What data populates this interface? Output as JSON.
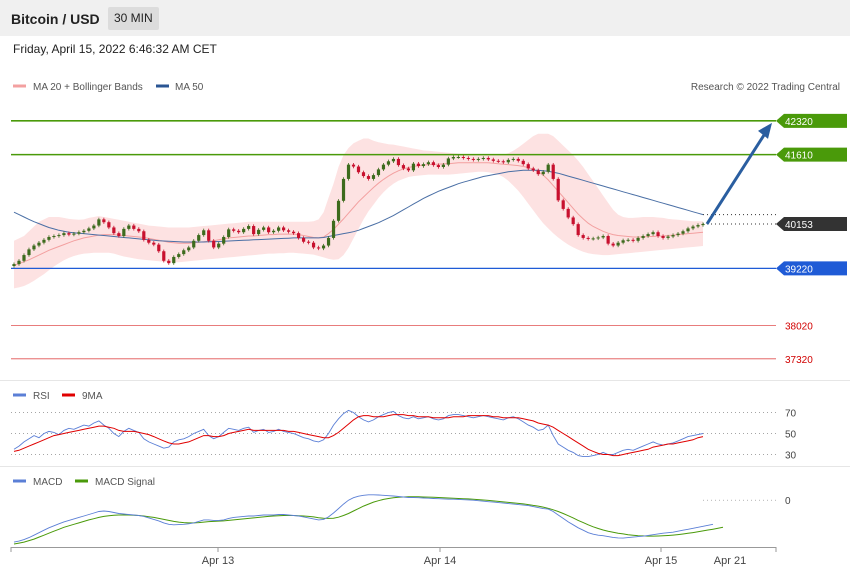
{
  "header": {
    "title": "Bitcoin / USD",
    "timeframe": "30 MIN"
  },
  "datetime": "Friday, April 15, 2022 6:46:32 AM CET",
  "legend": {
    "ma_bb": "MA 20 + Bollinger Bands",
    "ma50": "MA 50",
    "credit": "Research © 2022 Trading Central"
  },
  "rsi_legend": {
    "rsi": "RSI",
    "ma": "9MA"
  },
  "macd_legend": {
    "macd": "MACD",
    "signal": "MACD Signal"
  },
  "colors": {
    "support_blue": "#1f5bd6",
    "resistance_green": "#4a9a0a",
    "pivot_red": "#e05050",
    "bull": "#3d6b1d",
    "bear": "#c8102e",
    "bb_fill": "#fde2e2",
    "ma50": "#4a6fa5",
    "ma20": "#f3a0a0",
    "arrow": "#2a5ea0"
  },
  "chart_data": {
    "type": "candlestick",
    "instrument": "Bitcoin / USD",
    "timeframe": "30 MIN",
    "price_ylim": [
      36980,
      42800
    ],
    "x_ticks": [
      "Apr 13",
      "Apr 14",
      "Apr 15",
      "Apr 21"
    ],
    "current_price": 40153,
    "levels": [
      {
        "value": 42320,
        "type": "resistance"
      },
      {
        "value": 41610,
        "type": "resistance"
      },
      {
        "value": 39220,
        "type": "support"
      },
      {
        "value": 38020,
        "type": "support"
      },
      {
        "value": 37320,
        "type": "support"
      }
    ],
    "projection": {
      "from": 40153,
      "to": 42320
    },
    "close": [
      39310,
      39380,
      39500,
      39620,
      39700,
      39760,
      39820,
      39880,
      39900,
      39920,
      39960,
      39930,
      39950,
      39980,
      40010,
      40060,
      40120,
      40250,
      40190,
      40080,
      39960,
      39900,
      40050,
      40120,
      40050,
      40000,
      39820,
      39760,
      39720,
      39580,
      39380,
      39330,
      39460,
      39520,
      39600,
      39660,
      39800,
      39920,
      40020,
      39800,
      39660,
      39740,
      39880,
      40040,
      40010,
      39980,
      40050,
      40110,
      39940,
      40030,
      40080,
      39980,
      40010,
      40080,
      40020,
      39990,
      39960,
      39860,
      39780,
      39760,
      39660,
      39640,
      39700,
      39860,
      40220,
      40640,
      41100,
      41400,
      41360,
      41240,
      41160,
      41100,
      41180,
      41300,
      41400,
      41470,
      41520,
      41390,
      41320,
      41280,
      41420,
      41370,
      41410,
      41450,
      41390,
      41350,
      41400,
      41530,
      41560,
      41560,
      41540,
      41520,
      41500,
      41520,
      41540,
      41510,
      41480,
      41470,
      41450,
      41500,
      41520,
      41480,
      41410,
      41320,
      41280,
      41200,
      41250,
      41400,
      41100,
      40650,
      40470,
      40290,
      40150,
      39920,
      39860,
      39840,
      39850,
      39870,
      39900,
      39740,
      39700,
      39760,
      39810,
      39820,
      39800,
      39860,
      39900,
      39940,
      39980,
      39900,
      39860,
      39890,
      39920,
      39950,
      40000,
      40060,
      40100,
      40130,
      40153
    ],
    "ma20": [
      39280,
      39320,
      39360,
      39400,
      39450,
      39500,
      39550,
      39600,
      39640,
      39680,
      39720,
      39760,
      39800,
      39830,
      39860,
      39880,
      39900,
      39920,
      39930,
      39930,
      39930,
      39920,
      39910,
      39900,
      39890,
      39880,
      39870,
      39850,
      39830,
      39810,
      39790,
      39770,
      39760,
      39750,
      39750,
      39750,
      39760,
      39770,
      39780,
      39790,
      39800,
      39820,
      39840,
      39860,
      39870,
      39880,
      39890,
      39900,
      39900,
      39910,
      39920,
      39930,
      39930,
      39940,
      39940,
      39940,
      39940,
      39930,
      39910,
      39890,
      39870,
      39860,
      39880,
      39950,
      40040,
      40150,
      40260,
      40380,
      40500,
      40620,
      40720,
      40820,
      40920,
      41010,
      41090,
      41160,
      41220,
      41270,
      41310,
      41340,
      41360,
      41380,
      41390,
      41400,
      41410,
      41410,
      41420,
      41420,
      41430,
      41440,
      41440,
      41440,
      41440,
      41440,
      41440,
      41440,
      41430,
      41420,
      41410,
      41400,
      41390,
      41380,
      41360,
      41340,
      41300,
      41250,
      41180,
      41080,
      40960,
      40840,
      40720,
      40600,
      40480,
      40360,
      40260,
      40170,
      40100,
      40050,
      40000,
      39960,
      39930,
      39910,
      39900,
      39890,
      39880,
      39880,
      39880,
      39890,
      39890,
      39900,
      39900,
      39910,
      39920,
      39930,
      39940,
      39950,
      39960,
      39970,
      39980
    ],
    "bb_upper": [
      39800,
      39850,
      39900,
      40000,
      40100,
      40200,
      40250,
      40300,
      40300,
      40300,
      40280,
      40260,
      40250,
      40240,
      40250,
      40280,
      40300,
      40320,
      40300,
      40280,
      40260,
      40240,
      40220,
      40200,
      40180,
      40160,
      40140,
      40120,
      40110,
      40100,
      40090,
      40080,
      40080,
      40080,
      40080,
      40080,
      40090,
      40100,
      40110,
      40120,
      40130,
      40140,
      40150,
      40160,
      40170,
      40180,
      40190,
      40200,
      40200,
      40200,
      40200,
      40200,
      40200,
      40200,
      40200,
      40200,
      40200,
      40200,
      40200,
      40200,
      40210,
      40250,
      40400,
      40700,
      41000,
      41350,
      41600,
      41750,
      41850,
      41900,
      41950,
      41950,
      41900,
      41870,
      41850,
      41830,
      41820,
      41800,
      41780,
      41760,
      41740,
      41720,
      41700,
      41690,
      41680,
      41670,
      41660,
      41650,
      41640,
      41630,
      41620,
      41610,
      41600,
      41600,
      41600,
      41600,
      41600,
      41600,
      41610,
      41640,
      41690,
      41760,
      41840,
      41920,
      42000,
      42050,
      42050,
      42050,
      42000,
      41900,
      41800,
      41700,
      41600,
      41480,
      41350,
      41200,
      41050,
      40900,
      40750,
      40600,
      40450,
      40350,
      40300,
      40280,
      40280,
      40290,
      40300,
      40300,
      40300,
      40290,
      40280,
      40260,
      40250,
      40240,
      40230,
      40220,
      40210,
      40210,
      40210
    ],
    "bb_lower": [
      38800,
      38820,
      38850,
      38900,
      38960,
      39030,
      39100,
      39180,
      39260,
      39330,
      39390,
      39440,
      39480,
      39510,
      39530,
      39540,
      39550,
      39550,
      39550,
      39550,
      39530,
      39500,
      39470,
      39450,
      39430,
      39410,
      39400,
      39390,
      39380,
      39370,
      39360,
      39350,
      39350,
      39350,
      39360,
      39370,
      39380,
      39390,
      39400,
      39410,
      39420,
      39430,
      39440,
      39450,
      39460,
      39470,
      39480,
      39490,
      39500,
      39510,
      39520,
      39530,
      39530,
      39540,
      39540,
      39550,
      39550,
      39540,
      39530,
      39520,
      39510,
      39480,
      39450,
      39420,
      39400,
      39410,
      39500,
      39650,
      39850,
      40050,
      40250,
      40420,
      40560,
      40700,
      40820,
      40920,
      41000,
      41060,
      41100,
      41140,
      41160,
      41170,
      41180,
      41190,
      41190,
      41190,
      41190,
      41190,
      41200,
      41210,
      41220,
      41230,
      41240,
      41250,
      41250,
      41240,
      41220,
      41190,
      41140,
      41060,
      40960,
      40850,
      40720,
      40580,
      40440,
      40300,
      40170,
      40060,
      39960,
      39870,
      39790,
      39720,
      39660,
      39610,
      39570,
      39540,
      39520,
      39510,
      39500,
      39500,
      39510,
      39520,
      39530,
      39540,
      39550,
      39560,
      39570,
      39580,
      39590,
      39600,
      39610,
      39620,
      39630,
      39640,
      39650,
      39660,
      39670,
      39680,
      39690
    ],
    "ma50": [
      40400,
      40350,
      40300,
      40250,
      40200,
      40160,
      40120,
      40080,
      40050,
      40020,
      40000,
      39980,
      39970,
      39960,
      39950,
      39940,
      39930,
      39920,
      39910,
      39900,
      39890,
      39880,
      39870,
      39860,
      39850,
      39840,
      39830,
      39820,
      39810,
      39800,
      39795,
      39790,
      39785,
      39780,
      39775,
      39775,
      39775,
      39775,
      39775,
      39780,
      39780,
      39785,
      39790,
      39795,
      39800,
      39805,
      39810,
      39815,
      39820,
      39825,
      39830,
      39835,
      39840,
      39845,
      39850,
      39855,
      39860,
      39860,
      39860,
      39860,
      39860,
      39860,
      39870,
      39890,
      39910,
      39930,
      39950,
      39970,
      39990,
      40020,
      40060,
      40100,
      40140,
      40180,
      40230,
      40280,
      40330,
      40390,
      40450,
      40510,
      40570,
      40630,
      40690,
      40740,
      40790,
      40840,
      40880,
      40920,
      40960,
      41000,
      41030,
      41060,
      41090,
      41120,
      41150,
      41170,
      41190,
      41210,
      41230,
      41250,
      41260,
      41270,
      41280,
      41280,
      41280,
      41280,
      41270,
      41260,
      41240,
      41220,
      41190,
      41160,
      41130,
      41100,
      41070,
      41040,
      41010,
      40980,
      40950,
      40920,
      40890,
      40860,
      40830,
      40800,
      40770,
      40740,
      40710,
      40680,
      40650,
      40620,
      40590,
      40560,
      40530,
      40500,
      40470,
      40440,
      40410,
      40380,
      40350
    ],
    "rsi": {
      "ylim": [
        20,
        80
      ],
      "ticks": [
        70,
        50,
        30
      ],
      "rsi": [
        35,
        38,
        42,
        45,
        48,
        46,
        50,
        52,
        51,
        49,
        53,
        55,
        54,
        56,
        58,
        57,
        60,
        62,
        58,
        55,
        50,
        47,
        52,
        55,
        53,
        51,
        45,
        42,
        40,
        38,
        36,
        37,
        42,
        44,
        45,
        47,
        50,
        52,
        54,
        48,
        45,
        47,
        51,
        55,
        54,
        53,
        55,
        56,
        51,
        53,
        54,
        51,
        52,
        54,
        52,
        51,
        50,
        48,
        46,
        45,
        43,
        42,
        44,
        50,
        58,
        64,
        69,
        72,
        70,
        66,
        63,
        61,
        63,
        66,
        68,
        70,
        71,
        67,
        65,
        64,
        66,
        64,
        65,
        66,
        64,
        63,
        64,
        67,
        68,
        68,
        67,
        66,
        65,
        66,
        67,
        66,
        65,
        64,
        63,
        65,
        66,
        64,
        61,
        58,
        56,
        53,
        54,
        58,
        48,
        40,
        37,
        34,
        32,
        29,
        28,
        28,
        29,
        30,
        32,
        30,
        30,
        32,
        34,
        35,
        34,
        36,
        38,
        40,
        42,
        40,
        39,
        40,
        41,
        43,
        45,
        47,
        48,
        49,
        50
      ],
      "ma9": [
        33,
        34,
        36,
        38,
        40,
        42,
        44,
        46,
        48,
        49,
        50,
        51,
        52,
        53,
        54,
        55,
        56,
        57,
        57,
        56,
        55,
        53,
        52,
        52,
        52,
        51,
        50,
        49,
        47,
        45,
        43,
        41,
        40,
        40,
        41,
        42,
        44,
        46,
        48,
        48,
        47,
        47,
        48,
        50,
        51,
        52,
        53,
        54,
        53,
        53,
        53,
        53,
        53,
        53,
        53,
        52,
        52,
        51,
        50,
        49,
        48,
        47,
        46,
        46,
        48,
        51,
        55,
        59,
        63,
        66,
        67,
        67,
        66,
        66,
        66,
        67,
        68,
        68,
        68,
        67,
        67,
        66,
        66,
        66,
        65,
        65,
        65,
        65,
        66,
        66,
        66,
        67,
        67,
        67,
        67,
        67,
        66,
        66,
        65,
        65,
        65,
        65,
        64,
        63,
        62,
        60,
        59,
        58,
        56,
        53,
        50,
        47,
        44,
        41,
        38,
        35,
        33,
        31,
        30,
        30,
        29,
        29,
        30,
        31,
        32,
        33,
        34,
        35,
        37,
        38,
        39,
        40,
        40,
        41,
        42,
        43,
        44,
        46,
        47
      ]
    },
    "macd": {
      "zero": 0,
      "ylim": [
        -950,
        450
      ],
      "macd": [
        -850,
        -830,
        -800,
        -760,
        -710,
        -660,
        -610,
        -560,
        -520,
        -480,
        -440,
        -410,
        -380,
        -350,
        -320,
        -290,
        -260,
        -230,
        -220,
        -230,
        -250,
        -270,
        -280,
        -290,
        -300,
        -310,
        -330,
        -360,
        -390,
        -420,
        -460,
        -490,
        -500,
        -495,
        -490,
        -480,
        -460,
        -430,
        -400,
        -400,
        -410,
        -410,
        -400,
        -370,
        -350,
        -340,
        -330,
        -320,
        -320,
        -310,
        -300,
        -300,
        -300,
        -290,
        -290,
        -300,
        -310,
        -320,
        -340,
        -360,
        -380,
        -400,
        -390,
        -340,
        -260,
        -170,
        -80,
        0,
        50,
        80,
        100,
        110,
        110,
        105,
        100,
        90,
        85,
        75,
        65,
        55,
        55,
        50,
        45,
        40,
        35,
        30,
        25,
        20,
        20,
        15,
        10,
        5,
        0,
        -10,
        -20,
        -30,
        -40,
        -50,
        -60,
        -70,
        -80,
        -90,
        -100,
        -110,
        -130,
        -150,
        -170,
        -180,
        -230,
        -300,
        -370,
        -440,
        -500,
        -560,
        -610,
        -660,
        -690,
        -710,
        -720,
        -740,
        -755,
        -765,
        -770,
        -760,
        -750,
        -740,
        -730,
        -715,
        -700,
        -685,
        -670,
        -660,
        -650,
        -630,
        -610,
        -590,
        -570,
        -550,
        -530,
        -510,
        -490
      ],
      "signal": [
        -890,
        -870,
        -850,
        -820,
        -790,
        -750,
        -710,
        -670,
        -630,
        -590,
        -550,
        -520,
        -490,
        -460,
        -430,
        -400,
        -375,
        -350,
        -330,
        -315,
        -305,
        -300,
        -300,
        -300,
        -305,
        -310,
        -320,
        -335,
        -350,
        -370,
        -390,
        -410,
        -430,
        -445,
        -455,
        -460,
        -460,
        -455,
        -445,
        -435,
        -430,
        -425,
        -420,
        -410,
        -400,
        -390,
        -380,
        -370,
        -360,
        -350,
        -340,
        -330,
        -320,
        -315,
        -310,
        -310,
        -310,
        -315,
        -320,
        -330,
        -340,
        -355,
        -365,
        -370,
        -365,
        -345,
        -310,
        -270,
        -220,
        -170,
        -120,
        -80,
        -40,
        -10,
        15,
        35,
        50,
        60,
        65,
        70,
        70,
        68,
        65,
        62,
        58,
        54,
        50,
        45,
        40,
        35,
        30,
        25,
        20,
        12,
        4,
        -5,
        -15,
        -25,
        -35,
        -45,
        -55,
        -65,
        -75,
        -90,
        -105,
        -120,
        -140,
        -165,
        -195,
        -230,
        -270,
        -315,
        -360,
        -410,
        -455,
        -500,
        -540,
        -575,
        -605,
        -630,
        -650,
        -670,
        -685,
        -700,
        -710,
        -720,
        -725,
        -728,
        -728,
        -726,
        -722,
        -716,
        -708,
        -698,
        -686,
        -672,
        -658,
        -642,
        -624,
        -606,
        -588,
        -570,
        -550
      ]
    }
  }
}
